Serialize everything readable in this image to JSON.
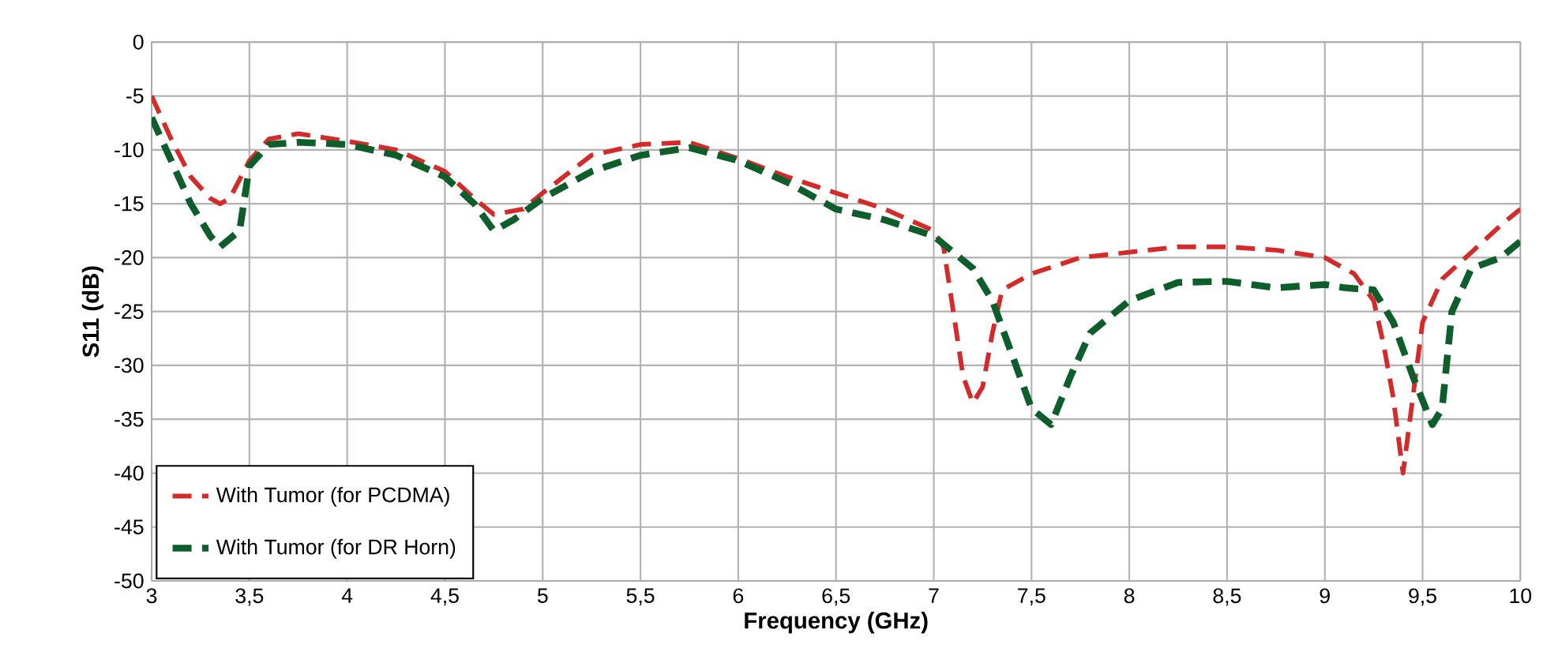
{
  "chart_data": {
    "type": "line",
    "xlabel": "Frequency (GHz)",
    "ylabel": "S11 (dB)",
    "xlim": [
      3,
      10
    ],
    "ylim": [
      -50,
      0
    ],
    "xticks": [
      3,
      {
        "value": 3.5,
        "label": "3,5"
      },
      4,
      {
        "value": 4.5,
        "label": "4,5"
      },
      5,
      {
        "value": 5.5,
        "label": "5,5"
      },
      6,
      {
        "value": 6.5,
        "label": "6,5"
      },
      7,
      {
        "value": 7.5,
        "label": "7,5"
      },
      8,
      {
        "value": 8.5,
        "label": "8,5"
      },
      9,
      {
        "value": 9.5,
        "label": "9,5"
      },
      10
    ],
    "yticks": [
      0,
      -5,
      -10,
      -15,
      -20,
      -25,
      -30,
      -35,
      -40,
      -45,
      -50
    ],
    "grid": true,
    "legend": "bottom left",
    "line_style": "dashed",
    "marker": "none",
    "series": [
      {
        "name": "With Tumor (for PCDMA)",
        "color": "#d42a2a",
        "x": [
          3.0,
          3.1,
          3.2,
          3.3,
          3.35,
          3.4,
          3.5,
          3.6,
          3.75,
          4.0,
          4.25,
          4.5,
          4.65,
          4.75,
          4.9,
          5.0,
          5.25,
          5.5,
          5.75,
          6.0,
          6.25,
          6.5,
          6.75,
          7.0,
          7.05,
          7.1,
          7.15,
          7.2,
          7.25,
          7.3,
          7.35,
          7.5,
          7.75,
          8.0,
          8.25,
          8.5,
          8.75,
          9.0,
          9.15,
          9.25,
          9.3,
          9.35,
          9.4,
          9.45,
          9.5,
          9.6,
          9.75,
          9.9,
          10.0
        ],
        "values": [
          -5,
          -9,
          -12.5,
          -14.5,
          -15,
          -14.5,
          -11,
          -9,
          -8.5,
          -9.2,
          -10,
          -12,
          -14.5,
          -16,
          -15.5,
          -14,
          -10.5,
          -9.5,
          -9.3,
          -10.8,
          -12.5,
          -14,
          -15.5,
          -17.5,
          -19,
          -25,
          -31,
          -33.5,
          -32,
          -27,
          -23,
          -21.5,
          -20,
          -19.5,
          -19,
          -19,
          -19.3,
          -20,
          -21.5,
          -24,
          -28,
          -33,
          -40,
          -33,
          -26,
          -22,
          -19.5,
          -17,
          -15.5
        ]
      },
      {
        "name": "With Tumor (for DR Horn)",
        "color": "#0d5e2a",
        "x": [
          3.0,
          3.1,
          3.2,
          3.3,
          3.35,
          3.45,
          3.5,
          3.6,
          3.75,
          4.0,
          4.25,
          4.5,
          4.65,
          4.75,
          4.85,
          5.0,
          5.25,
          5.5,
          5.75,
          6.0,
          6.25,
          6.5,
          6.75,
          7.0,
          7.2,
          7.3,
          7.4,
          7.5,
          7.6,
          7.7,
          7.8,
          8.0,
          8.25,
          8.5,
          8.75,
          9.0,
          9.1,
          9.25,
          9.35,
          9.45,
          9.55,
          9.6,
          9.65,
          9.75,
          9.9,
          10.0
        ],
        "values": [
          -7,
          -11,
          -15,
          -18,
          -19,
          -17.5,
          -11.5,
          -9.5,
          -9.3,
          -9.5,
          -10.5,
          -12.5,
          -15,
          -17.5,
          -16.5,
          -14.5,
          -12,
          -10.5,
          -9.8,
          -11,
          -13,
          -15.5,
          -16.5,
          -18,
          -21,
          -24,
          -29,
          -34,
          -35.5,
          -31,
          -27,
          -24,
          -22.3,
          -22.2,
          -22.8,
          -22.5,
          -22.8,
          -23,
          -26,
          -31,
          -35.5,
          -34,
          -25,
          -21,
          -20,
          -18.5
        ]
      }
    ]
  }
}
